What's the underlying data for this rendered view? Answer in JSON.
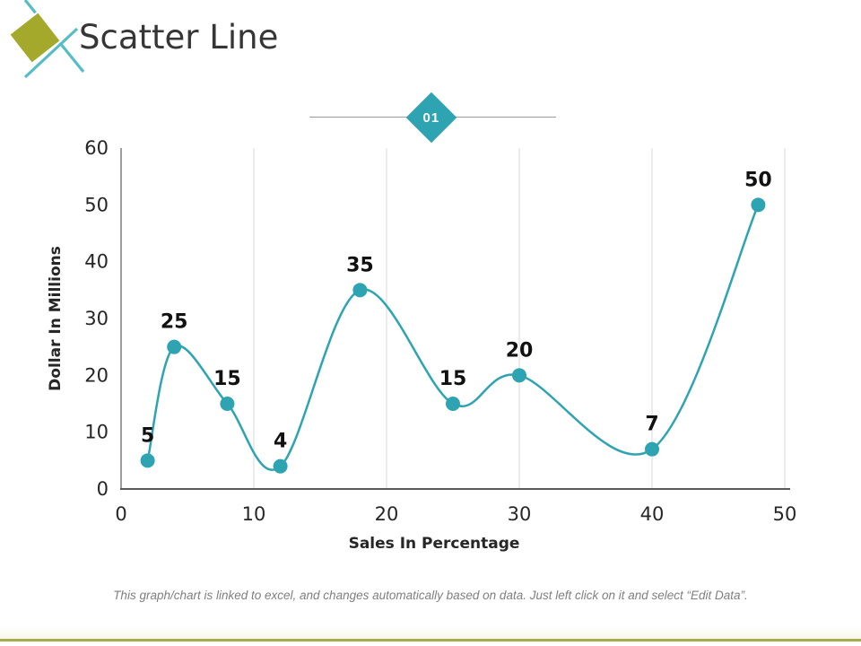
{
  "slide": {
    "title": "Scatter Line",
    "badge_label": "01",
    "footer_note": "This graph/chart is linked to excel,  and changes automatically based on data. Just left click on it and select “Edit Data”.",
    "colors": {
      "accent_teal": "#2ea3b2",
      "logo_olive": "#a4a82b",
      "logo_line_teal": "#56bcc7",
      "grid": "#d9d9d9",
      "x_axis": "#595959",
      "y_axis": "#7f7f7f",
      "tick_text": "#262626",
      "data_label": "#111111",
      "divider_gray": "#9a9a9a",
      "footer_text": "#7f7f7f",
      "bottom_bar": "#a6aa49",
      "title_text": "#363636"
    }
  },
  "chart_data": {
    "type": "scatter",
    "subtype": "smooth-line-with-markers",
    "x": [
      2,
      4,
      8,
      12,
      18,
      25,
      30,
      40,
      48
    ],
    "y": [
      5,
      25,
      15,
      4,
      35,
      15,
      20,
      7,
      50
    ],
    "point_labels": [
      "5",
      "25",
      "15",
      "4",
      "35",
      "15",
      "20",
      "7",
      "50"
    ],
    "xlabel": "Sales In Percentage",
    "ylabel": "Dollar In Millions",
    "xlim": [
      0,
      50
    ],
    "ylim": [
      0,
      60
    ],
    "xticks": [
      0,
      10,
      20,
      30,
      40,
      50
    ],
    "yticks": [
      0,
      10,
      20,
      30,
      40,
      50,
      60
    ],
    "grid": "vertical-only",
    "legend": "none"
  }
}
